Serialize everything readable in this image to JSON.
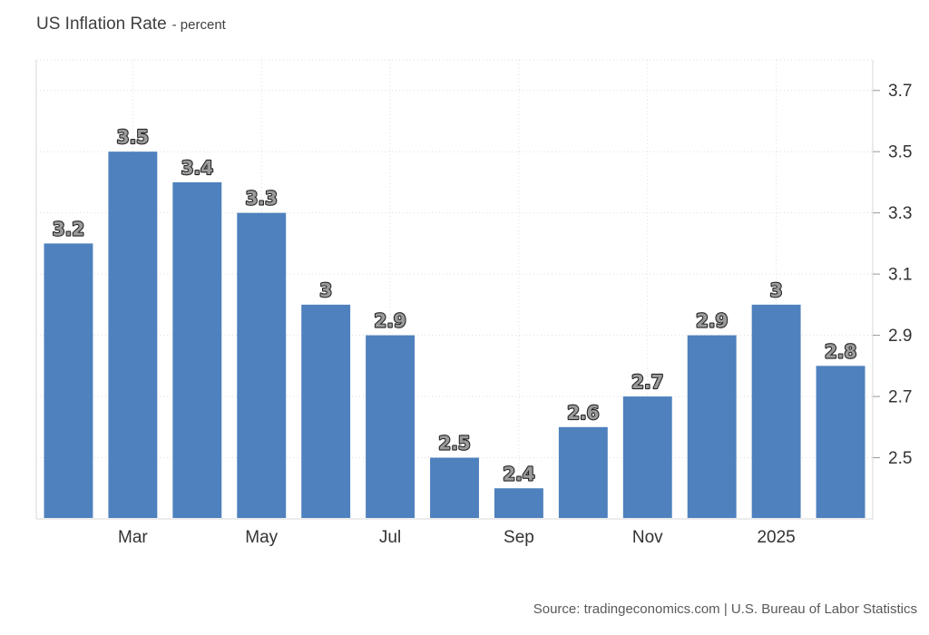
{
  "header": {
    "title": "US Inflation Rate",
    "subtitle": "- percent"
  },
  "footer": {
    "source": "Source: tradingeconomics.com | U.S. Bureau of Labor Statistics"
  },
  "colors": {
    "background": "#ffffff",
    "bar": "#4e81bd",
    "grid": "#dedede",
    "plot_border": "#d9d9d9",
    "axis_tick": "#999999",
    "axis_text": "#333333",
    "bar_label_fill": "#9b9b9b",
    "bar_label_stroke": "#262626",
    "bar_label_halo": "#ffffff"
  },
  "chart_data": {
    "type": "bar",
    "title": "US Inflation Rate",
    "unit": "percent",
    "values": [
      3.2,
      3.5,
      3.4,
      3.3,
      3.0,
      2.9,
      2.5,
      2.4,
      2.6,
      2.7,
      2.9,
      3.0,
      2.8
    ],
    "bar_labels": [
      "3.2",
      "3.5",
      "3.4",
      "3.3",
      "3",
      "2.9",
      "2.5",
      "2.4",
      "2.6",
      "2.7",
      "2.9",
      "3",
      "2.8"
    ],
    "x_ticks": [
      {
        "bar_index": 1,
        "label": "Mar"
      },
      {
        "bar_index": 3,
        "label": "May"
      },
      {
        "bar_index": 5,
        "label": "Jul"
      },
      {
        "bar_index": 7,
        "label": "Sep"
      },
      {
        "bar_index": 9,
        "label": "Nov"
      },
      {
        "bar_index": 11,
        "label": "2025"
      }
    ],
    "y_tick_labels": [
      "2.5",
      "2.7",
      "2.9",
      "3.1",
      "3.3",
      "3.5",
      "3.7"
    ],
    "y_ticks": [
      2.5,
      2.7,
      2.9,
      3.1,
      3.3,
      3.5,
      3.7
    ],
    "ylim": [
      2.3,
      3.8
    ],
    "grid": true,
    "legend": false,
    "y_axis_side": "right"
  }
}
